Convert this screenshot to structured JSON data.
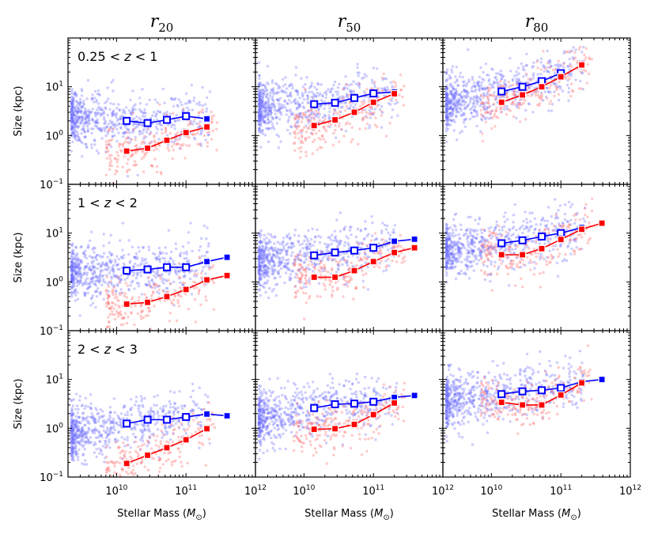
{
  "chart_data": {
    "type": "scatter",
    "title_columns": [
      {
        "sym": "r",
        "sub": "20"
      },
      {
        "sym": "r",
        "sub": "50"
      },
      {
        "sym": "r",
        "sub": "80"
      }
    ],
    "row_labels": [
      {
        "pre": "0.25 < ",
        "var": "z",
        "post": " < 1"
      },
      {
        "pre": "1 < ",
        "var": "z",
        "post": " < 2"
      },
      {
        "pre": "2 < ",
        "var": "z",
        "post": " < 3"
      }
    ],
    "xlabel": {
      "pre": "Stellar Mass (",
      "var": "M",
      "sub": "⊙",
      "post": ")"
    },
    "ylabel": "Size (kpc)",
    "x_scale": "log",
    "y_scale": "log",
    "xlim": [
      2000000000.0,
      1000000000000.0
    ],
    "ylim": [
      0.1,
      100
    ],
    "x_ticks": [
      {
        "value": 10000000000.0,
        "base": "10",
        "exp": "10"
      },
      {
        "value": 100000000000.0,
        "base": "10",
        "exp": "11"
      },
      {
        "value": 1000000000000.0,
        "base": "10",
        "exp": "12"
      }
    ],
    "y_ticks": [
      {
        "value": 0.1,
        "base": "10",
        "exp": "−1"
      },
      {
        "value": 1,
        "base": "10",
        "exp": "0"
      },
      {
        "value": 10,
        "base": "10",
        "exp": "1"
      }
    ],
    "colors": {
      "blue": "#0000ff",
      "red": "#ff0000",
      "scatter_blue": "#6f6fff",
      "scatter_red": "#ff7a7a"
    },
    "scatter_note": "dense clouds of individual galaxies behind the binned medians",
    "panels": [
      {
        "row": 0,
        "col": 0,
        "blue": {
          "x": [
            14000000000.0,
            28000000000.0,
            53000000000.0,
            100000000000.0,
            200000000000.0
          ],
          "y": [
            2.0,
            1.8,
            2.1,
            2.5,
            2.2
          ]
        },
        "red": {
          "x": [
            14000000000.0,
            28000000000.0,
            53000000000.0,
            100000000000.0,
            200000000000.0
          ],
          "y": [
            0.48,
            0.55,
            0.8,
            1.15,
            1.5
          ]
        }
      },
      {
        "row": 0,
        "col": 1,
        "blue": {
          "x": [
            14000000000.0,
            28000000000.0,
            53000000000.0,
            100000000000.0,
            200000000000.0
          ],
          "y": [
            4.4,
            4.7,
            5.9,
            7.3,
            7.8
          ]
        },
        "red": {
          "x": [
            14000000000.0,
            28000000000.0,
            53000000000.0,
            100000000000.0,
            200000000000.0
          ],
          "y": [
            1.6,
            2.1,
            3.0,
            4.8,
            7.2
          ]
        }
      },
      {
        "row": 0,
        "col": 2,
        "blue": {
          "x": [
            14000000000.0,
            28000000000.0,
            53000000000.0,
            100000000000.0
          ],
          "y": [
            8.0,
            10.0,
            13.0,
            19.0
          ]
        },
        "red": {
          "x": [
            14000000000.0,
            28000000000.0,
            53000000000.0,
            100000000000.0,
            200000000000.0
          ],
          "y": [
            4.8,
            6.8,
            10.0,
            16.0,
            28.0
          ]
        }
      },
      {
        "row": 1,
        "col": 0,
        "blue": {
          "x": [
            14000000000.0,
            28000000000.0,
            53000000000.0,
            100000000000.0,
            200000000000.0,
            390000000000.0
          ],
          "y": [
            1.7,
            1.8,
            2.0,
            2.0,
            2.6,
            3.2
          ]
        },
        "red": {
          "x": [
            14000000000.0,
            28000000000.0,
            53000000000.0,
            100000000000.0,
            200000000000.0,
            390000000000.0
          ],
          "y": [
            0.35,
            0.38,
            0.5,
            0.7,
            1.1,
            1.35
          ]
        }
      },
      {
        "row": 1,
        "col": 1,
        "blue": {
          "x": [
            14000000000.0,
            28000000000.0,
            53000000000.0,
            100000000000.0,
            200000000000.0,
            390000000000.0
          ],
          "y": [
            3.5,
            4.0,
            4.4,
            5.0,
            6.8,
            7.5
          ]
        },
        "red": {
          "x": [
            14000000000.0,
            28000000000.0,
            53000000000.0,
            100000000000.0,
            200000000000.0,
            390000000000.0
          ],
          "y": [
            1.25,
            1.25,
            1.7,
            2.6,
            4.0,
            5.0
          ]
        }
      },
      {
        "row": 1,
        "col": 2,
        "blue": {
          "x": [
            14000000000.0,
            28000000000.0,
            53000000000.0,
            100000000000.0,
            200000000000.0
          ],
          "y": [
            6.2,
            7.1,
            8.5,
            10.0,
            13.0
          ]
        },
        "red": {
          "x": [
            14000000000.0,
            28000000000.0,
            53000000000.0,
            100000000000.0,
            200000000000.0,
            390000000000.0
          ],
          "y": [
            3.6,
            3.6,
            4.8,
            7.4,
            12.0,
            16.0
          ]
        }
      },
      {
        "row": 2,
        "col": 0,
        "blue": {
          "x": [
            14000000000.0,
            28000000000.0,
            53000000000.0,
            100000000000.0,
            200000000000.0,
            390000000000.0
          ],
          "y": [
            1.25,
            1.5,
            1.5,
            1.7,
            1.95,
            1.8
          ]
        },
        "red": {
          "x": [
            14000000000.0,
            28000000000.0,
            53000000000.0,
            100000000000.0,
            200000000000.0
          ],
          "y": [
            0.19,
            0.28,
            0.4,
            0.58,
            0.98
          ]
        }
      },
      {
        "row": 2,
        "col": 1,
        "blue": {
          "x": [
            14000000000.0,
            28000000000.0,
            53000000000.0,
            100000000000.0,
            200000000000.0,
            390000000000.0
          ],
          "y": [
            2.6,
            3.1,
            3.2,
            3.5,
            4.3,
            4.7
          ]
        },
        "red": {
          "x": [
            14000000000.0,
            28000000000.0,
            53000000000.0,
            100000000000.0,
            200000000000.0
          ],
          "y": [
            0.95,
            0.98,
            1.2,
            1.9,
            3.3
          ]
        }
      },
      {
        "row": 2,
        "col": 2,
        "blue": {
          "x": [
            14000000000.0,
            28000000000.0,
            53000000000.0,
            100000000000.0,
            200000000000.0,
            390000000000.0
          ],
          "y": [
            5.0,
            5.7,
            6.0,
            6.7,
            9.0,
            10.0
          ]
        },
        "red": {
          "x": [
            14000000000.0,
            28000000000.0,
            53000000000.0,
            100000000000.0,
            200000000000.0
          ],
          "y": [
            3.4,
            3.0,
            3.0,
            4.8,
            8.5
          ]
        }
      }
    ]
  }
}
